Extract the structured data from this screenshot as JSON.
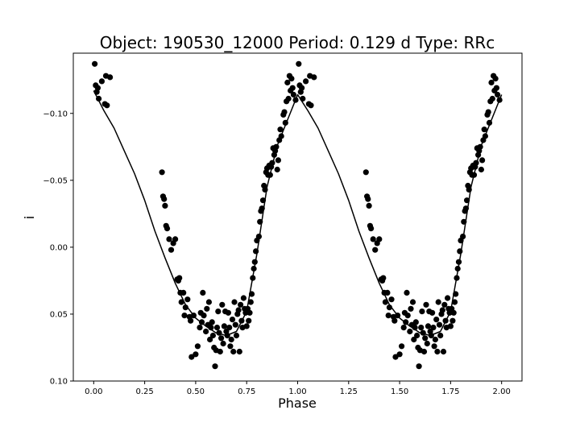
{
  "chart_data": {
    "type": "scatter",
    "title": "Object: 190530_12000    Period: 0.129 d    Type: RRc",
    "xlabel": "Phase",
    "ylabel": "i",
    "xlim": [
      -0.1,
      2.1
    ],
    "ylim": [
      0.1,
      -0.145
    ],
    "y_inverted": true,
    "grid": false,
    "legend": "none",
    "xticks": [
      0.0,
      0.25,
      0.5,
      0.75,
      1.0,
      1.25,
      1.5,
      1.75,
      2.0
    ],
    "xtick_labels": [
      "0.00",
      "0.25",
      "0.50",
      "0.75",
      "1.00",
      "1.25",
      "1.50",
      "1.75",
      "2.00"
    ],
    "yticks": [
      -0.1,
      -0.05,
      0.0,
      0.05,
      0.1
    ],
    "ytick_labels": [
      "−0.10",
      "−0.05",
      "0.00",
      "0.05",
      "0.10"
    ],
    "colors": {
      "points": "#000000",
      "model": "#000000"
    },
    "series": [
      {
        "kind": "points",
        "x": [
          0.005,
          0.01,
          0.015,
          0.02,
          0.025,
          0.04,
          0.055,
          0.06,
          0.065,
          0.08,
          0.335,
          0.34,
          0.345,
          0.35,
          0.355,
          0.36,
          0.37,
          0.38,
          0.39,
          0.4,
          0.41,
          0.415,
          0.42,
          0.425,
          0.43,
          0.44,
          0.445,
          0.45,
          0.46,
          0.47,
          0.475,
          0.48,
          0.49,
          0.5,
          0.51,
          0.52,
          0.525,
          0.53,
          0.535,
          0.54,
          0.55,
          0.555,
          0.56,
          0.565,
          0.57,
          0.575,
          0.58,
          0.585,
          0.59,
          0.595,
          0.6,
          0.605,
          0.61,
          0.615,
          0.62,
          0.625,
          0.63,
          0.635,
          0.64,
          0.645,
          0.65,
          0.655,
          0.66,
          0.665,
          0.67,
          0.675,
          0.68,
          0.685,
          0.69,
          0.695,
          0.7,
          0.705,
          0.71,
          0.715,
          0.72,
          0.725,
          0.73,
          0.735,
          0.74,
          0.745,
          0.75,
          0.755,
          0.76,
          0.765,
          0.77,
          0.775,
          0.78,
          0.785,
          0.79,
          0.795,
          0.8,
          0.81,
          0.815,
          0.82,
          0.825,
          0.83,
          0.835,
          0.84,
          0.845,
          0.85,
          0.855,
          0.86,
          0.865,
          0.87,
          0.875,
          0.88,
          0.885,
          0.89,
          0.895,
          0.9,
          0.905,
          0.91,
          0.915,
          0.92,
          0.93,
          0.935,
          0.94,
          0.945,
          0.95,
          0.955,
          0.96,
          0.965,
          0.97,
          0.975,
          0.98,
          0.99,
          1.005,
          1.01,
          1.015,
          1.02,
          1.025,
          1.04,
          1.055,
          1.06,
          1.065,
          1.08,
          1.335,
          1.34,
          1.345,
          1.35,
          1.355,
          1.36,
          1.37,
          1.38,
          1.39,
          1.4,
          1.41,
          1.415,
          1.42,
          1.425,
          1.43,
          1.44,
          1.445,
          1.45,
          1.46,
          1.47,
          1.475,
          1.48,
          1.49,
          1.5,
          1.51,
          1.52,
          1.525,
          1.53,
          1.535,
          1.54,
          1.55,
          1.555,
          1.56,
          1.565,
          1.57,
          1.575,
          1.58,
          1.585,
          1.59,
          1.595,
          1.6,
          1.605,
          1.61,
          1.615,
          1.62,
          1.625,
          1.63,
          1.635,
          1.64,
          1.645,
          1.65,
          1.655,
          1.66,
          1.665,
          1.67,
          1.675,
          1.68,
          1.685,
          1.69,
          1.695,
          1.7,
          1.705,
          1.71,
          1.715,
          1.72,
          1.725,
          1.73,
          1.735,
          1.74,
          1.745,
          1.75,
          1.755,
          1.76,
          1.765,
          1.77,
          1.775,
          1.78,
          1.785,
          1.79,
          1.795,
          1.8,
          1.81,
          1.815,
          1.82,
          1.825,
          1.83,
          1.835,
          1.84,
          1.845,
          1.85,
          1.855,
          1.86,
          1.865,
          1.87,
          1.875,
          1.88,
          1.885,
          1.89,
          1.895,
          1.9,
          1.905,
          1.91,
          1.915,
          1.92,
          1.93,
          1.935,
          1.94,
          1.945,
          1.95,
          1.955,
          1.96,
          1.965,
          1.97,
          1.975,
          1.98,
          1.99
        ],
        "y": [
          -0.137,
          -0.121,
          -0.116,
          -0.119,
          -0.111,
          -0.124,
          -0.107,
          -0.128,
          -0.106,
          -0.127,
          -0.056,
          -0.038,
          -0.036,
          -0.031,
          -0.016,
          -0.014,
          -0.006,
          0.002,
          -0.003,
          -0.006,
          0.024,
          0.025,
          0.023,
          0.034,
          0.041,
          0.034,
          0.051,
          0.045,
          0.039,
          0.052,
          0.055,
          0.082,
          0.051,
          0.08,
          0.074,
          0.06,
          0.049,
          0.056,
          0.034,
          0.051,
          0.063,
          0.046,
          0.058,
          0.041,
          0.069,
          0.06,
          0.056,
          0.066,
          0.075,
          0.089,
          0.077,
          0.06,
          0.048,
          0.064,
          0.078,
          0.068,
          0.043,
          0.072,
          0.059,
          0.048,
          0.063,
          0.066,
          0.049,
          0.06,
          0.074,
          0.069,
          0.054,
          0.078,
          0.041,
          0.058,
          0.066,
          0.05,
          0.047,
          0.078,
          0.043,
          0.055,
          0.06,
          0.038,
          0.046,
          0.049,
          0.059,
          0.046,
          0.055,
          0.049,
          0.041,
          0.035,
          0.023,
          0.016,
          0.011,
          0.003,
          -0.005,
          -0.008,
          -0.019,
          -0.027,
          -0.029,
          -0.035,
          -0.046,
          -0.043,
          -0.056,
          -0.059,
          -0.054,
          -0.061,
          -0.054,
          -0.06,
          -0.063,
          -0.074,
          -0.069,
          -0.072,
          -0.075,
          -0.058,
          -0.065,
          -0.08,
          -0.088,
          -0.083,
          -0.099,
          -0.101,
          -0.093,
          -0.109,
          -0.123,
          -0.111,
          -0.128,
          -0.117,
          -0.126,
          -0.119,
          -0.114,
          -0.11,
          -0.137,
          -0.121,
          -0.116,
          -0.119,
          -0.111,
          -0.124,
          -0.107,
          -0.128,
          -0.106,
          -0.127,
          -0.056,
          -0.038,
          -0.036,
          -0.031,
          -0.016,
          -0.014,
          -0.006,
          0.002,
          -0.003,
          -0.006,
          0.024,
          0.025,
          0.023,
          0.034,
          0.041,
          0.034,
          0.051,
          0.045,
          0.039,
          0.052,
          0.055,
          0.082,
          0.051,
          0.08,
          0.074,
          0.06,
          0.049,
          0.056,
          0.034,
          0.051,
          0.063,
          0.046,
          0.058,
          0.041,
          0.069,
          0.06,
          0.056,
          0.066,
          0.075,
          0.089,
          0.077,
          0.06,
          0.048,
          0.064,
          0.078,
          0.068,
          0.043,
          0.072,
          0.059,
          0.048,
          0.063,
          0.066,
          0.049,
          0.06,
          0.074,
          0.069,
          0.054,
          0.078,
          0.041,
          0.058,
          0.066,
          0.05,
          0.047,
          0.078,
          0.043,
          0.055,
          0.06,
          0.038,
          0.046,
          0.049,
          0.059,
          0.046,
          0.055,
          0.049,
          0.041,
          0.035,
          0.023,
          0.016,
          0.011,
          0.003,
          -0.005,
          -0.008,
          -0.019,
          -0.027,
          -0.029,
          -0.035,
          -0.046,
          -0.043,
          -0.056,
          -0.059,
          -0.054,
          -0.061,
          -0.054,
          -0.06,
          -0.063,
          -0.074,
          -0.069,
          -0.072,
          -0.075,
          -0.058,
          -0.065,
          -0.08,
          -0.088,
          -0.083,
          -0.099,
          -0.101,
          -0.093,
          -0.109,
          -0.123,
          -0.111,
          -0.128,
          -0.117,
          -0.126,
          -0.119,
          -0.114,
          -0.11
        ]
      },
      {
        "kind": "line",
        "x": [
          0.0,
          0.05,
          0.1,
          0.15,
          0.2,
          0.25,
          0.3,
          0.35,
          0.4,
          0.45,
          0.5,
          0.55,
          0.6,
          0.65,
          0.7,
          0.75,
          0.8,
          0.85,
          0.9,
          0.95,
          1.0,
          1.05,
          1.1,
          1.15,
          1.2,
          1.25,
          1.3,
          1.35,
          1.4,
          1.45,
          1.5,
          1.55,
          1.6,
          1.65,
          1.7,
          1.75,
          1.8,
          1.85,
          1.9,
          1.95,
          2.0
        ],
        "y": [
          -0.117,
          -0.102,
          -0.089,
          -0.072,
          -0.055,
          -0.035,
          -0.012,
          0.008,
          0.027,
          0.043,
          0.053,
          0.059,
          0.064,
          0.066,
          0.063,
          0.048,
          0.005,
          -0.045,
          -0.076,
          -0.095,
          -0.114,
          -0.102,
          -0.089,
          -0.072,
          -0.055,
          -0.035,
          -0.012,
          0.008,
          0.027,
          0.043,
          0.053,
          0.059,
          0.064,
          0.066,
          0.063,
          0.048,
          0.005,
          -0.045,
          -0.076,
          -0.095,
          -0.114
        ]
      }
    ]
  }
}
